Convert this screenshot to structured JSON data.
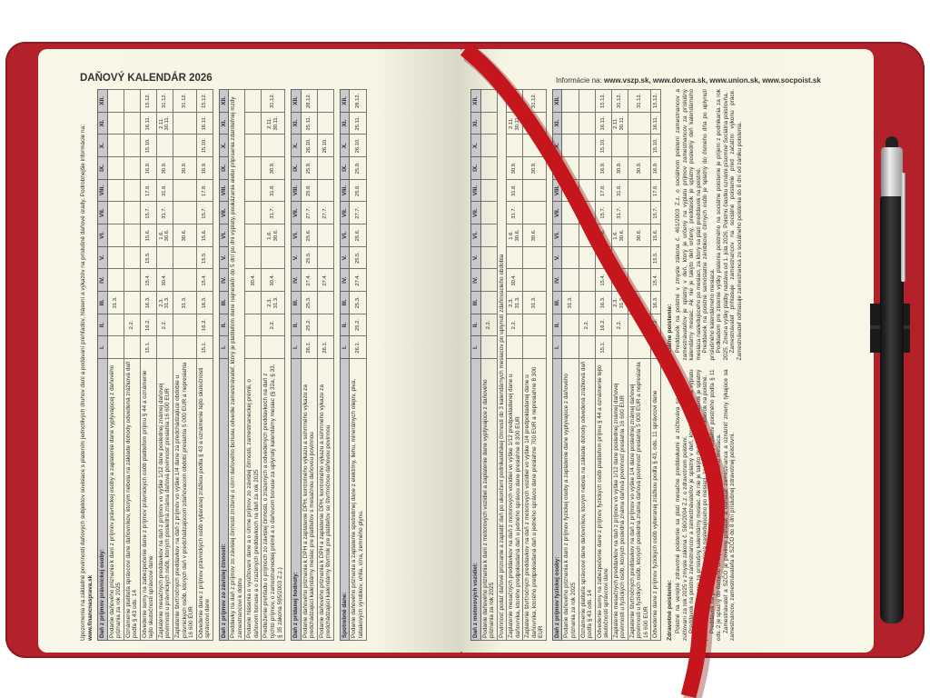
{
  "colors": {
    "cover": "#b3222a",
    "page": "#f8f6e6",
    "ribbon": "#c4161c",
    "header_fill": "#c9c9cc"
  },
  "title": "DAŇOVÝ KALENDÁR 2026",
  "info": {
    "label": "Informácie na:",
    "sites": "www.vszp.sk, www.dovera.sk, www.union.sk, www.socpoist.sk"
  },
  "months": [
    "I.",
    "II.",
    "III.",
    "IV.",
    "V.",
    "VI.",
    "VII.",
    "VIII.",
    "IX.",
    "X.",
    "XI.",
    "XII."
  ],
  "left": {
    "intro": "Upozornenia na základné povinnosti daňových subjektov súvisiace s platením jednotlivých druhov daní a podávaní prehľadov, hlásení a výkazov na príslušné daňové úrady. Podrobnejšie informácie na:",
    "intro_link": "www.financnasprava.sk",
    "tables": [
      {
        "title": "Daň z príjmov právnickej osoby:",
        "rows": [
          {
            "text": "Podanie daňového priznania k dani z príjmov právnickej osoby a zaplatenie dane vyplývajúcej z daňového priznania za rok 2025",
            "cells": [
              "",
              "",
              "31.3.",
              "",
              "",
              "",
              "",
              "",
              "",
              "",
              "",
              ""
            ]
          },
          {
            "text": "Oznámenie platiteľa správcovi dane daňovníkov, ktorým nebola na základe dohody odvedená zrážková daň podľa § 43 ods. 14",
            "cells": [
              "",
              "2.2.",
              "",
              "",
              "",
              "",
              "",
              "",
              "",
              "",
              "",
              ""
            ]
          },
          {
            "text": "Odvedenie sumy na zabezpečenie dane z príjmov právnických osôb platiteľom príjmu § 44 a oznámenie tejto skutočnosti správcovi dane",
            "cells": [
              "15.1.",
              "16.2.",
              "16.3.",
              "15.4.",
              "15.5.",
              "15.6.",
              "15.7.",
              "17.8.",
              "16.9.",
              "15.10.",
              "16.11.",
              "15.12."
            ]
          },
          {
            "text": "Zaplatenie mesačných preddavkov na daň z príjmov vo výške 1/12 dane poslednej známej daňovej povinnosti u právnických osôb, ktorých posledná známa daňová povinnosť presiahla 16 600 EUR",
            "cells": [
              "",
              "2.2.",
              "2.3.\n31.3.",
              "30.4.",
              "",
              "1.6.\n30.6.",
              "31.7.",
              "31.8.",
              "30.9.",
              "",
              "2.11.\n30.11.",
              "31.12."
            ]
          },
          {
            "text": "Zaplatenie štvrťročných preddavkov na daň z príjmov vo výške 1/4 dane za predchádzajúce obdobie u právnických osôb, ktorých daň v predchádzajúcom zdaňovacom období presiahla 5 000 EUR a nepresiahla 16 600 EUR",
            "cells": [
              "",
              "",
              "31.3.",
              "",
              "",
              "30.6.",
              "",
              "",
              "30.9.",
              "",
              "",
              "31.12."
            ]
          },
          {
            "text": "Odvedenie dane z príjmov právnických osôb vyberanej zrážkou podľa § 43 a oznámenie tejto skutočnosti správcovi dane",
            "cells": [
              "15.1.",
              "16.2.",
              "16.3.",
              "15.4.",
              "15.5.",
              "15.6.",
              "15.7.",
              "17.8.",
              "16.9.",
              "15.10.",
              "16.11.",
              "15.12."
            ]
          }
        ]
      },
      {
        "title": "Daň z príjmov zo závislej činnosti:",
        "rows": [
          {
            "text": "Preddavky na daň z príjmov zo závislej činnosti znížené o úhrn daňového bonusu odvedie zamestnávateľ, ktorý je platiteľom dane najneskôr do 5 dní po dni výplaty, poukázania alebo pripísania zdaniteľnej mzdy zamestnancovi k dobru",
            "span": true
          },
          {
            "text": "Podanie hlásenia o vyúčtovaní dane a o úhrne príjmov zo závislej činnosti, zamestnaneckej prémii, o daňovom bonuse a o zrazených preddavkoch na daň za rok 2025",
            "cells": [
              "",
              "",
              "",
              "30.4.",
              "",
              "",
              "",
              "",
              "",
              "",
              "",
              ""
            ]
          },
          {
            "text": "Predloženie prehľadu o príjmoch zo závislej činnosti, o zrazených a odvedených preddavkoch na daň z týchto príjmov, o zamestnaneckej prémii a o daňovom bonuse za uplynulý kalendárny mesiac (§ 32a, § 33, § 35 zákona 595/2003 Z.z.)",
            "cells": [
              "",
              "2.2.",
              "2.3.\n31.3.",
              "30.4.",
              "",
              "1.6.\n30.6.",
              "31.7.",
              "31.8.",
              "30.9.",
              "",
              "2.11.\n30.11.",
              "31.12."
            ]
          }
        ]
      },
      {
        "title": "Daň z pridanej hodnoty:",
        "rows": [
          {
            "text": "Podanie daňového priznania k DPH a zaplatenie DPH, kontrolného výkazu a súhrnného výkazu za predchádzajúci kalendárny mesiac pre platiteľov s mesačnou daňovou povinnou",
            "cells": [
              "26.1.",
              "25.2.",
              "25.3.",
              "27.4.",
              "25.5.",
              "25.6.",
              "27.7.",
              "25.8.",
              "25.9.",
              "26.10.",
              "25.11.",
              "28.12."
            ]
          },
          {
            "text": "Podanie daňového priznania k DPH a zaplatenie DPH, kontrolného výkazu a súhrnného výkazu za predchádzajúci kalendárny štvrťrok pre platiteľov so štvrťročnou daňovou povinnou",
            "cells": [
              "26.1.",
              "",
              "",
              "27.4.",
              "",
              "",
              "27.7.",
              "",
              "",
              "26.10.",
              "",
              ""
            ]
          }
        ]
      },
      {
        "title": "Spotrebné dane:",
        "rows": [
          {
            "text": "Podanie daňového priznania a zaplatenie spotrebnej dane z elektriny, liehu, minerálnych olejov, piva, tabakových výrobkov, uhlia, vína, zemného plynu.",
            "cells": [
              "26.1.",
              "25.2.",
              "25.3.",
              "27.4.",
              "25.5.",
              "25.6.",
              "27.7.",
              "25.8.",
              "25.9.",
              "26.10.",
              "25.11.",
              "28.12."
            ]
          }
        ]
      }
    ]
  },
  "right": {
    "tables": [
      {
        "title": "Daň z motorových vozidiel:",
        "rows": [
          {
            "text": "Podanie daňového priznania k dani z motorových vozidiel a zaplatenie dane vyplývajúce z daňového priznania za rok 2025",
            "cells": [
              "",
              "2.2.",
              "",
              "",
              "",
              "",
              "",
              "",
              "",
              "",
              "",
              ""
            ]
          },
          {
            "text": "Povinnosť podať daňové priznanie a zaplatiť daň po ukončení podnikateľskej činnosti do 3 kalendárnych mesiacov po uplynutí zdaňovacieho obdobia",
            "span": true
          },
          {
            "text": "Zaplatenie mesačných preddavkov na daň z motorových vozidiel vo výške 1/12 predpokladanej dane u daňovníka, ktorého predpokladaná daň u jedného správcu dane presiahne 8 300 EUR",
            "cells": [
              "",
              "2.2.",
              "2.3.\n31.3.",
              "30.4.",
              "",
              "1.6.\n30.6.",
              "31.7.",
              "31.8.",
              "30.9.",
              "",
              "2.11.\n30.11.",
              "31.12."
            ]
          },
          {
            "text": "Zaplatenie štvrťročných preddavkov na daň z motorových vozidiel vo výške 1/4 predpokladanej dane u daňovníka, ktorého predpokladaná daň u jedného správcu dane presiahne 700 EUR a nepresiahne 8 300 EUR",
            "cells": [
              "",
              "",
              "31.3.",
              "",
              "",
              "30.6.",
              "",
              "",
              "30.9.",
              "",
              "",
              "31.12."
            ]
          }
        ]
      },
      {
        "title": "Daň z príjmov fyzickej osoby:",
        "rows": [
          {
            "text": "Podanie daňového priznania k dani z príjmov fyzickej osoby a zaplatenie dane vyplývajúce z daňového priznania za rok 2025",
            "cells": [
              "",
              "",
              "31.3.",
              "",
              "",
              "",
              "",
              "",
              "",
              "",
              "",
              ""
            ]
          },
          {
            "text": "Oznámenie platiteľa správcovi dane daňovníkov, ktorým nebola na základe dohody odvedená zrážková daň podľa § 43 ods. 14",
            "cells": [
              "",
              "2.2.",
              "",
              "",
              "",
              "",
              "",
              "",
              "",
              "",
              "",
              ""
            ]
          },
          {
            "text": "Odvedenie sumy na zabezpečenie dane z príjmov fyzických osôb platiteľom príjmu § 44 a oznámenie tejto skutočnosti správcovi dane",
            "cells": [
              "15.1.",
              "16.2.",
              "16.3.",
              "15.4.",
              "15.5.",
              "15.6.",
              "15.7.",
              "17.8.",
              "16.9.",
              "15.10.",
              "16.11.",
              "15.12."
            ]
          },
          {
            "text": "Zaplatenie mesačných preddavkov na daň z príjmov vo výške 1/12 dane poslednej známej daňovej povinnosti u fyzických osôb, ktorých posledná známa daňová povinnosť presiahla 16 600 EUR",
            "cells": [
              "",
              "2.2.",
              "2.3.\n31.3.",
              "30.4.",
              "",
              "1.6.\n30.6.",
              "31.7.",
              "31.8.",
              "30.9.",
              "",
              "2.11.\n30.11.",
              "31.12."
            ]
          },
          {
            "text": "Zaplatenie štvrťročných preddavkov na daň z príjmov vo výške 1/4 dane poslednej známej daňovej povinnosti u fyzických osôb, ktorých posledná známa daňová povinnosť presiahla 5 000 EUR a nepresiahla 16 600 EUR",
            "cells": [
              "",
              "",
              "31.3.",
              "",
              "",
              "30.6.",
              "",
              "",
              "30.9.",
              "",
              "",
              "31.12."
            ]
          },
          {
            "text": "Odvedenie dane z príjmov fyzických osôb vyberanej zrážkou podľa § 43, ods. 11 správcovi dane",
            "cells": [
              "15.1.",
              "16.2.",
              "16.3.",
              "15.4.",
              "15.5.",
              "15.6.",
              "15.7.",
              "17.8.",
              "16.9.",
              "15.10.",
              "16.11.",
              "15.12."
            ]
          }
        ]
      }
    ],
    "health": {
      "title": "Zdravotné poistenie:",
      "paragraphs": [
        "Poistné na verejné zdravotné poistenie sa platí mesačne preddavkami a zúčtováva sa v ročnom zúčtovaní za rok 2025 v zmysle zákona č. 580/2004 Z.z. o zdravotnom poistení.",
        "Preddavok na poistné zamestnancov a zamestnávateľov je splatný v deň, ktorý je určený na výplatu príjmov zamestnancov za príslušný kalendárny mesiac. Ak nie je takýto deň určený, preddavok je splatný posledný deň kalendárneho mesiaca nasledujúceho po mesiaci, za ktorý sa platí preddavok na poistné.",
        "Preddavok na poistné samostatne zárobkovo činných osôb (SZČO) a platiteľov poistného podľa § 11 ods. 2 je splatný do ôsmeho dňa po uplynutí príslušného kalendárneho mesiaca.",
        "Zamestnávateľ a SZČO je povinný prihlásiť a odhlásiť zamestnanca a oznámiť zmeny týkajúce sa zamestnancov, zamestnávateľa a SZČO do 8 dní príslušnej zdravotnej poisťovni."
      ]
    },
    "social": {
      "title": "Sociálne poistenie:",
      "paragraphs": [
        "Preddavok na poistné v zmysle zákona č. 461/2003 Z.z. o sociálnom poistení zamestnancov a zamestnávateľov je splatný v deň, ktorý je určený na výplatu príjmov zamestnancov za príslušný kalendárny mesiac. Ak nie je takýto deň určený, preddavok je splatný posledný deň kalendárneho mesiaca nasledujúceho po mesiaci, za ktorý sa platí preddavok na poistné.",
        "Preddavok na poistné samostatne zárobkovo činných osôb je splatný do ôsmeho dňa po uplynutí príslušného kalendárneho mesiaca.",
        "Podkladom pre zistenie výšky platenia poistného na sociálne poistenie je príjem z podnikania za rok 2025. Zmena výšky platby nastáva od 1. júla 2026. Poistnú čiastku oznámi písomne Sociálna poisťovňa.",
        "Zamestnávateľ prihlasuje zamestnancov na sociálne poistenie pred začatím výkonu práce. Zamestnávateľ odhlasuje zamestnanca zo sociálneho poistenia do 8 dní od zániku poistenia."
      ]
    }
  }
}
